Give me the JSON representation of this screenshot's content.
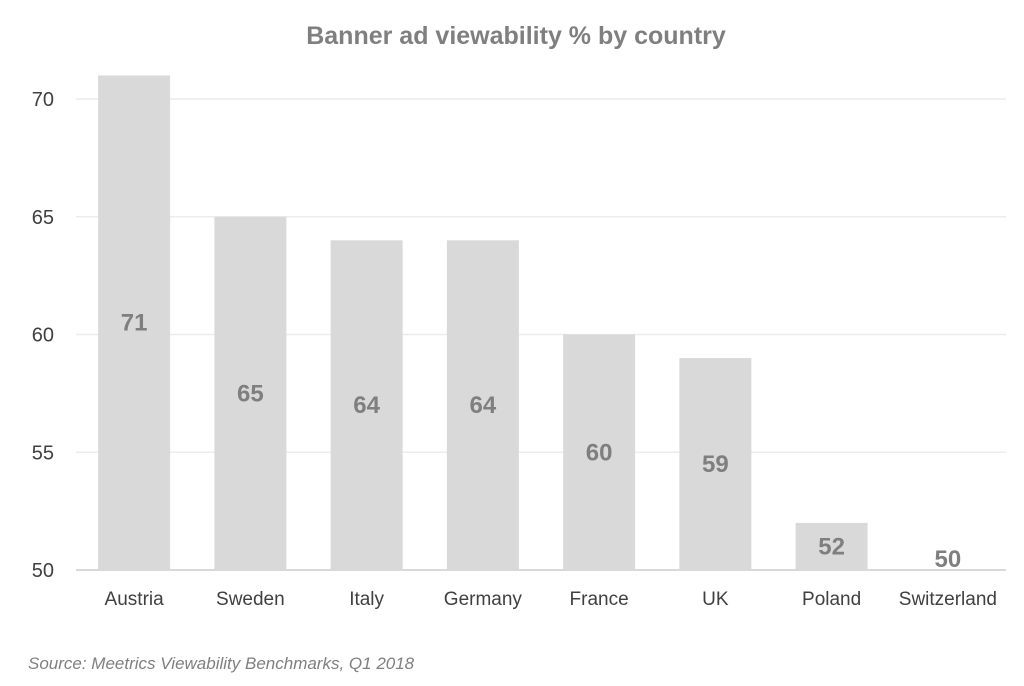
{
  "chart_data": {
    "type": "bar",
    "title": "Banner ad viewability % by country",
    "categories": [
      "Austria",
      "Sweden",
      "Italy",
      "Germany",
      "France",
      "UK",
      "Poland",
      "Switzerland"
    ],
    "values": [
      71,
      65,
      64,
      64,
      60,
      59,
      52,
      50
    ],
    "data_labels": [
      "71",
      "65",
      "64",
      "64",
      "60",
      "59",
      "52",
      "50"
    ],
    "xlabel": "",
    "ylabel": "",
    "ylim": [
      50,
      71
    ],
    "yticks": [
      50,
      55,
      60,
      65,
      70
    ],
    "grid": true,
    "legend": "none",
    "bar_color": "#d9d9d9"
  },
  "footer": {
    "source": "Source: Meetrics Viewability Benchmarks, Q1 2018"
  },
  "colors": {
    "title": "#7f7f7f",
    "data_label": "#7f7f7f",
    "axis_text": "#404040",
    "gridline": "#ececec",
    "baseline": "#d9d9d9"
  }
}
